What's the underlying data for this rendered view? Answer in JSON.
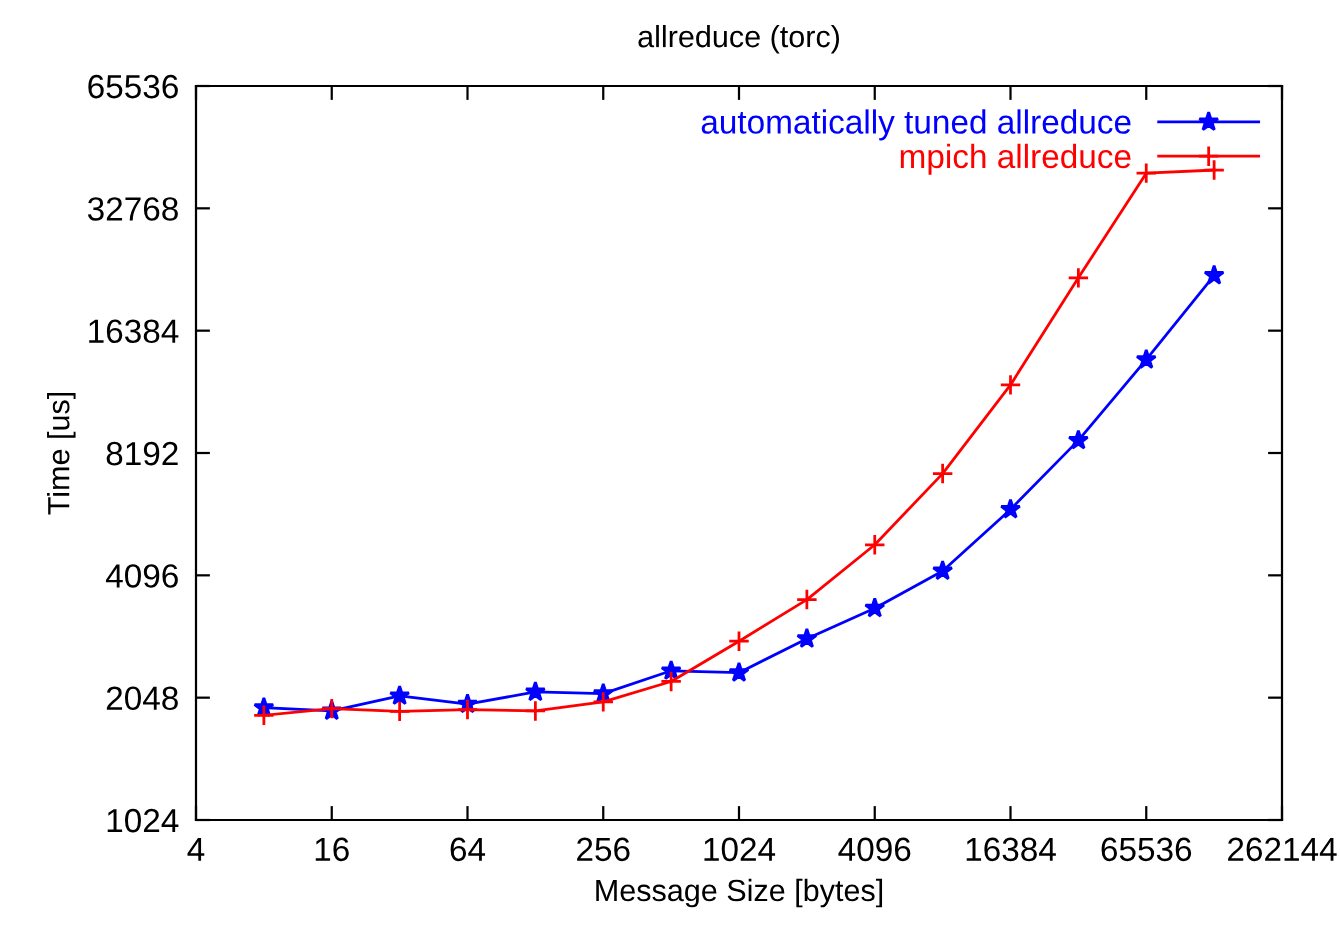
{
  "chart_data": {
    "type": "line",
    "title": "allreduce (torc)",
    "xlabel": "Message Size [bytes]",
    "ylabel": "Time [us]",
    "log": "xy",
    "xlim": [
      4,
      262144
    ],
    "ylim": [
      1024,
      65536
    ],
    "xticks": [
      4,
      16,
      64,
      256,
      1024,
      4096,
      16384,
      65536,
      262144
    ],
    "yticks": [
      1024,
      2048,
      4096,
      8192,
      16384,
      32768,
      65536
    ],
    "x": [
      8,
      16,
      32,
      64,
      128,
      256,
      512,
      1024,
      2048,
      4096,
      8192,
      16384,
      32768,
      65536,
      131072
    ],
    "grid": false,
    "legend": "top right",
    "line_style": "solid",
    "series": [
      {
        "name": "automatically tuned allreduce",
        "color": "#0000ff",
        "marker": "star",
        "values": [
          1935,
          1900,
          2070,
          1975,
          2115,
          2095,
          2385,
          2360,
          2860,
          3400,
          4200,
          5950,
          8800,
          13900,
          22400
        ]
      },
      {
        "name": "mpich allreduce",
        "color": "#ff0000",
        "marker": "cross",
        "values": [
          1853,
          1925,
          1895,
          1915,
          1900,
          2000,
          2245,
          2820,
          3570,
          4870,
          7290,
          12050,
          22100,
          40000,
          40700
        ]
      }
    ]
  }
}
